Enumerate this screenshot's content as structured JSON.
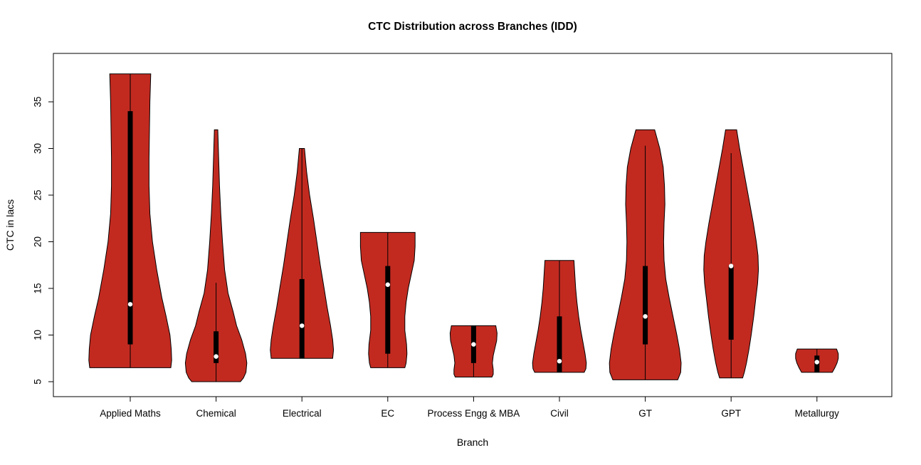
{
  "chart_data": {
    "type": "violin",
    "title": "CTC Distribution across Branches (IDD)",
    "xlabel": "Branch",
    "ylabel": "CTC in lacs",
    "ylim": [
      3.4,
      40.2
    ],
    "yticks": [
      5,
      10,
      15,
      20,
      25,
      30,
      35
    ],
    "grid": false,
    "legend": "none",
    "fill_color": "#C22A20",
    "outline_color": "#000000",
    "box_color": "#000000",
    "median_color": "#ffffff",
    "violins": [
      {
        "name": "Applied Maths",
        "min": 6.5,
        "max": 38.0,
        "q1": 9.0,
        "q3": 34.0,
        "median": 13.3,
        "whisker_low": 6.5,
        "whisker_high": 38.0,
        "profile": [
          [
            38,
            0.48
          ],
          [
            35,
            0.46
          ],
          [
            32,
            0.45
          ],
          [
            29,
            0.44
          ],
          [
            26,
            0.44
          ],
          [
            23,
            0.46
          ],
          [
            20,
            0.52
          ],
          [
            17,
            0.62
          ],
          [
            14,
            0.74
          ],
          [
            12,
            0.84
          ],
          [
            10,
            0.93
          ],
          [
            8.5,
            0.96
          ],
          [
            7.3,
            0.97
          ],
          [
            6.5,
            0.95
          ]
        ]
      },
      {
        "name": "Chemical",
        "min": 5.0,
        "max": 32.0,
        "q1": 7.0,
        "q3": 10.4,
        "median": 7.7,
        "whisker_low": 5.0,
        "whisker_high": 15.6,
        "profile": [
          [
            32,
            0.04
          ],
          [
            29,
            0.06
          ],
          [
            26,
            0.08
          ],
          [
            23,
            0.11
          ],
          [
            20,
            0.15
          ],
          [
            17,
            0.2
          ],
          [
            14.5,
            0.28
          ],
          [
            12.5,
            0.4
          ],
          [
            11,
            0.48
          ],
          [
            9.5,
            0.6
          ],
          [
            8,
            0.69
          ],
          [
            7,
            0.72
          ],
          [
            6,
            0.7
          ],
          [
            5.4,
            0.64
          ],
          [
            5,
            0.57
          ]
        ]
      },
      {
        "name": "Electrical",
        "min": 7.5,
        "max": 30.0,
        "q1": 7.5,
        "q3": 16.0,
        "median": 11.0,
        "whisker_low": 7.5,
        "whisker_high": 30.0,
        "profile": [
          [
            30,
            0.06
          ],
          [
            27.5,
            0.11
          ],
          [
            25,
            0.18
          ],
          [
            22.5,
            0.27
          ],
          [
            20,
            0.35
          ],
          [
            17.5,
            0.43
          ],
          [
            15,
            0.52
          ],
          [
            13,
            0.59
          ],
          [
            11,
            0.67
          ],
          [
            9.5,
            0.72
          ],
          [
            8.4,
            0.74
          ],
          [
            7.5,
            0.72
          ]
        ]
      },
      {
        "name": "EC",
        "min": 6.5,
        "max": 21.0,
        "q1": 8.0,
        "q3": 17.4,
        "median": 15.4,
        "whisker_low": 6.5,
        "whisker_high": 21.0,
        "profile": [
          [
            21,
            0.64
          ],
          [
            19.5,
            0.64
          ],
          [
            18,
            0.62
          ],
          [
            16.5,
            0.55
          ],
          [
            15,
            0.48
          ],
          [
            13.5,
            0.43
          ],
          [
            12,
            0.4
          ],
          [
            10.5,
            0.4
          ],
          [
            9,
            0.44
          ],
          [
            8,
            0.45
          ],
          [
            7,
            0.43
          ],
          [
            6.5,
            0.4
          ]
        ]
      },
      {
        "name": "Process Engg & MBA",
        "min": 5.5,
        "max": 11.0,
        "q1": 7.0,
        "q3": 11.0,
        "median": 9.0,
        "whisker_low": 5.5,
        "whisker_high": 11.0,
        "profile": [
          [
            11,
            0.52
          ],
          [
            10.2,
            0.55
          ],
          [
            9.4,
            0.54
          ],
          [
            8.6,
            0.5
          ],
          [
            7.8,
            0.46
          ],
          [
            7,
            0.44
          ],
          [
            6.3,
            0.46
          ],
          [
            5.8,
            0.46
          ],
          [
            5.5,
            0.43
          ]
        ]
      },
      {
        "name": "Civil",
        "min": 6.0,
        "max": 18.0,
        "q1": 6.0,
        "q3": 12.0,
        "median": 7.2,
        "whisker_low": 6.0,
        "whisker_high": 18.0,
        "profile": [
          [
            18,
            0.34
          ],
          [
            16.5,
            0.36
          ],
          [
            15,
            0.38
          ],
          [
            13.5,
            0.41
          ],
          [
            12,
            0.45
          ],
          [
            10.5,
            0.5
          ],
          [
            9,
            0.56
          ],
          [
            8,
            0.6
          ],
          [
            7,
            0.63
          ],
          [
            6.4,
            0.62
          ],
          [
            6,
            0.58
          ]
        ]
      },
      {
        "name": "GT",
        "min": 5.2,
        "max": 32.0,
        "q1": 9.0,
        "q3": 17.4,
        "median": 12.0,
        "whisker_low": 5.2,
        "whisker_high": 30.3,
        "profile": [
          [
            32,
            0.22
          ],
          [
            30,
            0.34
          ],
          [
            28,
            0.42
          ],
          [
            26,
            0.45
          ],
          [
            24,
            0.46
          ],
          [
            22,
            0.44
          ],
          [
            20,
            0.43
          ],
          [
            18,
            0.44
          ],
          [
            16,
            0.48
          ],
          [
            14,
            0.56
          ],
          [
            12,
            0.65
          ],
          [
            10,
            0.74
          ],
          [
            8.5,
            0.8
          ],
          [
            7,
            0.84
          ],
          [
            6,
            0.83
          ],
          [
            5.2,
            0.76
          ]
        ]
      },
      {
        "name": "GPT",
        "min": 5.4,
        "max": 32.0,
        "q1": 9.5,
        "q3": 17.5,
        "median": 17.4,
        "whisker_low": 5.4,
        "whisker_high": 29.5,
        "profile": [
          [
            32,
            0.13
          ],
          [
            30,
            0.2
          ],
          [
            28,
            0.28
          ],
          [
            26,
            0.36
          ],
          [
            24,
            0.44
          ],
          [
            22,
            0.52
          ],
          [
            20,
            0.59
          ],
          [
            18.5,
            0.63
          ],
          [
            17,
            0.64
          ],
          [
            15.5,
            0.62
          ],
          [
            14,
            0.58
          ],
          [
            12,
            0.53
          ],
          [
            10,
            0.47
          ],
          [
            8.5,
            0.42
          ],
          [
            7,
            0.36
          ],
          [
            6,
            0.31
          ],
          [
            5.4,
            0.27
          ]
        ]
      },
      {
        "name": "Metallurgy",
        "min": 6.0,
        "max": 8.5,
        "q1": 6.0,
        "q3": 7.8,
        "median": 7.1,
        "whisker_low": 6.0,
        "whisker_high": 8.5,
        "profile": [
          [
            8.5,
            0.46
          ],
          [
            8,
            0.5
          ],
          [
            7.5,
            0.5
          ],
          [
            7,
            0.47
          ],
          [
            6.5,
            0.42
          ],
          [
            6,
            0.36
          ]
        ]
      }
    ]
  }
}
